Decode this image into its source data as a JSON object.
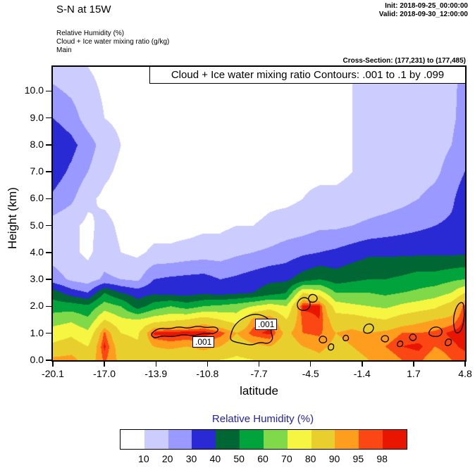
{
  "header": {
    "title": "S-N at 15W",
    "init_label": "Init: 2018-09-25_00:00:00",
    "valid_label": "Valid: 2018-09-30_12:00:00",
    "legend_lines": [
      "Relative Humidity  (%)",
      "Cloud + Ice water mixing ratio  (g/kg)",
      "Main"
    ],
    "cross_section": "Cross-Section: (177,231) to (177,485)"
  },
  "plot": {
    "contour_title": "Cloud + Ice water mixing ratio Contours: .001 to .1 by .099",
    "xlabel": "latitude",
    "ylabel": "Height (km)"
  },
  "colorbar": {
    "title": "Relative Humidity  (%)",
    "title_color": "#2222aa",
    "labels": [
      "10",
      "20",
      "30",
      "40",
      "50",
      "60",
      "70",
      "80",
      "90",
      "95",
      "98"
    ]
  },
  "chart_data": {
    "type": "heatmap",
    "title": "S-N at 15W",
    "xlabel": "latitude",
    "ylabel": "Height (km)",
    "xlim": [
      -20.1,
      4.8
    ],
    "ylim": [
      0,
      10.9
    ],
    "x_ticks": [
      "-20.1",
      "-17.0",
      "-13.9",
      "-10.8",
      "-7.7",
      "-4.5",
      "-1.4",
      "1.7",
      "4.8"
    ],
    "y_ticks": [
      "0.0",
      "1.0",
      "2.0",
      "3.0",
      "4.0",
      "5.0",
      "6.0",
      "7.0",
      "8.0",
      "9.0",
      "10.0"
    ],
    "levels": [
      10,
      20,
      30,
      40,
      50,
      60,
      70,
      80,
      90,
      95,
      98
    ],
    "colors": [
      "#ffffff",
      "#ccccff",
      "#9999ff",
      "#2a2ad4",
      "#006633",
      "#00a33c",
      "#7fd948",
      "#f5f542",
      "#e8cf2e",
      "#ff9d1e",
      "#fa4713",
      "#e81500"
    ],
    "grid": {
      "xs": [
        -20.1,
        -19,
        -18,
        -17,
        -16,
        -15,
        -14,
        -13,
        -12,
        -11,
        -10,
        -9,
        -8,
        -7,
        -6,
        -5,
        -4,
        -3,
        -2,
        -1,
        0,
        1,
        2,
        3,
        4,
        4.8
      ],
      "zs": [
        0,
        0.5,
        1,
        1.5,
        2,
        2.5,
        3,
        4,
        5,
        6,
        7,
        8,
        9,
        10.9
      ],
      "rh": [
        [
          92,
          93,
          85,
          96,
          88,
          85,
          85,
          82,
          80,
          82,
          80,
          78,
          80,
          82,
          80,
          85,
          88,
          85,
          88,
          90,
          92,
          95,
          96,
          92,
          95,
          96
        ],
        [
          82,
          85,
          80,
          99,
          85,
          82,
          90,
          92,
          90,
          93,
          90,
          85,
          88,
          90,
          85,
          90,
          92,
          88,
          90,
          92,
          95,
          98,
          99,
          95,
          97,
          99
        ],
        [
          75,
          78,
          72,
          96,
          80,
          78,
          99,
          100,
          100,
          100,
          97,
          90,
          97,
          99,
          88,
          95,
          96,
          90,
          92,
          90,
          92,
          95,
          95,
          96,
          99,
          100
        ],
        [
          65,
          68,
          62,
          80,
          72,
          70,
          75,
          78,
          80,
          85,
          80,
          75,
          92,
          96,
          80,
          96,
          98,
          85,
          85,
          82,
          80,
          85,
          88,
          90,
          92,
          99
        ],
        [
          55,
          55,
          52,
          65,
          60,
          45,
          55,
          60,
          55,
          60,
          62,
          65,
          70,
          75,
          70,
          99,
          99,
          75,
          72,
          70,
          68,
          72,
          75,
          78,
          85,
          97
        ],
        [
          45,
          35,
          30,
          50,
          40,
          35,
          38,
          36,
          36,
          38,
          36,
          38,
          40,
          45,
          50,
          80,
          75,
          60,
          60,
          60,
          58,
          60,
          62,
          65,
          70,
          80
        ],
        [
          25,
          18,
          15,
          22,
          20,
          18,
          30,
          32,
          33,
          34,
          30,
          32,
          35,
          38,
          38,
          45,
          50,
          45,
          48,
          50,
          50,
          52,
          55,
          55,
          58,
          60
        ],
        [
          15,
          12,
          8,
          15,
          10,
          8,
          12,
          12,
          14,
          15,
          15,
          18,
          20,
          22,
          25,
          28,
          30,
          32,
          35,
          38,
          38,
          38,
          38,
          38,
          38,
          38
        ],
        [
          15,
          12,
          8,
          13,
          8,
          5,
          6,
          6,
          6,
          8,
          8,
          10,
          10,
          12,
          14,
          15,
          18,
          18,
          20,
          22,
          24,
          26,
          28,
          30,
          32,
          36
        ],
        [
          28,
          22,
          12,
          8,
          6,
          5,
          5,
          5,
          5,
          5,
          6,
          6,
          6,
          8,
          8,
          10,
          12,
          12,
          13,
          14,
          15,
          17,
          20,
          23,
          28,
          36
        ],
        [
          35,
          28,
          20,
          12,
          8,
          6,
          5,
          5,
          5,
          5,
          5,
          5,
          5,
          6,
          6,
          8,
          8,
          8,
          10,
          12,
          14,
          15,
          16,
          18,
          24,
          30
        ],
        [
          38,
          33,
          25,
          15,
          10,
          8,
          6,
          5,
          5,
          5,
          5,
          5,
          5,
          6,
          6,
          6,
          6,
          8,
          10,
          12,
          13,
          14,
          15,
          16,
          20,
          26
        ],
        [
          30,
          25,
          15,
          10,
          8,
          6,
          5,
          5,
          5,
          5,
          5,
          5,
          5,
          6,
          6,
          6,
          6,
          8,
          10,
          12,
          13,
          14,
          15,
          16,
          18,
          24
        ],
        [
          15,
          12,
          10,
          8,
          6,
          5,
          5,
          5,
          5,
          5,
          5,
          5,
          5,
          6,
          6,
          6,
          6,
          8,
          10,
          12,
          13,
          14,
          15,
          16,
          18,
          22
        ]
      ]
    },
    "contour_interval_note": ".001 to .1 by .099",
    "contour_labels": [
      {
        "text": ".001",
        "x": 198,
        "y": 383
      },
      {
        "text": ".001",
        "x": 287,
        "y": 358
      }
    ],
    "contours": [
      [
        [
          138,
          380
        ],
        [
          150,
          371
        ],
        [
          165,
          373
        ],
        [
          178,
          369
        ],
        [
          192,
          372
        ],
        [
          205,
          368
        ],
        [
          218,
          371
        ],
        [
          230,
          369
        ],
        [
          236,
          374
        ],
        [
          228,
          380
        ],
        [
          214,
          378
        ],
        [
          200,
          383
        ],
        [
          185,
          380
        ],
        [
          170,
          384
        ],
        [
          155,
          382
        ],
        [
          144,
          386
        ]
      ],
      [
        [
          252,
          382
        ],
        [
          256,
          370
        ],
        [
          264,
          361
        ],
        [
          274,
          355
        ],
        [
          286,
          351
        ],
        [
          297,
          353
        ],
        [
          306,
          358
        ],
        [
          311,
          367
        ],
        [
          309,
          377
        ],
        [
          313,
          386
        ],
        [
          306,
          394
        ],
        [
          294,
          391
        ],
        [
          282,
          396
        ],
        [
          268,
          393
        ],
        [
          258,
          391
        ],
        [
          252,
          388
        ]
      ],
      [
        [
          346,
          338
        ],
        [
          350,
          330
        ],
        [
          358,
          327
        ],
        [
          365,
          332
        ],
        [
          365,
          342
        ],
        [
          358,
          347
        ],
        [
          349,
          345
        ]
      ],
      [
        [
          362,
          329
        ],
        [
          366,
          323
        ],
        [
          373,
          324
        ],
        [
          376,
          330
        ],
        [
          371,
          335
        ],
        [
          364,
          334
        ]
      ],
      [
        [
          377,
          388
        ],
        [
          381,
          382
        ],
        [
          388,
          384
        ],
        [
          389,
          391
        ],
        [
          381,
          393
        ]
      ],
      [
        [
          390,
          398
        ],
        [
          394,
          393
        ],
        [
          399,
          395
        ],
        [
          398,
          402
        ],
        [
          392,
          403
        ]
      ],
      [
        [
          411,
          386
        ],
        [
          414,
          381
        ],
        [
          419,
          382
        ],
        [
          420,
          388
        ],
        [
          414,
          390
        ]
      ],
      [
        [
          440,
          374
        ],
        [
          444,
          366
        ],
        [
          452,
          365
        ],
        [
          456,
          371
        ],
        [
          452,
          378
        ],
        [
          443,
          379
        ]
      ],
      [
        [
          465,
          388
        ],
        [
          468,
          382
        ],
        [
          475,
          382
        ],
        [
          477,
          388
        ],
        [
          472,
          392
        ]
      ],
      [
        [
          488,
          394
        ],
        [
          492,
          389
        ],
        [
          497,
          391
        ],
        [
          496,
          397
        ],
        [
          490,
          398
        ]
      ],
      [
        [
          505,
          385
        ],
        [
          509,
          379
        ],
        [
          515,
          381
        ],
        [
          516,
          387
        ],
        [
          510,
          390
        ]
      ],
      [
        [
          532,
          380
        ],
        [
          537,
          371
        ],
        [
          546,
          369
        ],
        [
          553,
          374
        ],
        [
          551,
          382
        ],
        [
          541,
          384
        ]
      ],
      [
        [
          556,
          392
        ],
        [
          560,
          386
        ],
        [
          566,
          388
        ],
        [
          565,
          395
        ],
        [
          558,
          397
        ]
      ],
      [
        [
          570,
          375
        ],
        [
          568,
          360
        ],
        [
          571,
          345
        ],
        [
          576,
          336
        ],
        [
          582,
          334
        ],
        [
          584,
          346
        ],
        [
          583,
          364
        ],
        [
          579,
          376
        ],
        [
          573,
          379
        ]
      ]
    ]
  }
}
